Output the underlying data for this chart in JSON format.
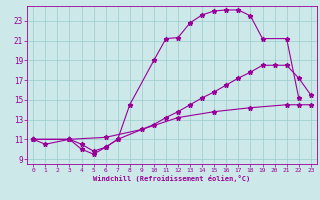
{
  "xlabel": "Windchill (Refroidissement éolien,°C)",
  "bg_color": "#cce8e8",
  "line_color": "#990099",
  "grid_color": "#99cccc",
  "xlim": [
    -0.5,
    23.5
  ],
  "ylim": [
    8.5,
    24.5
  ],
  "xticks": [
    0,
    1,
    2,
    3,
    4,
    5,
    6,
    7,
    8,
    9,
    10,
    11,
    12,
    13,
    14,
    15,
    16,
    17,
    18,
    19,
    20,
    21,
    22,
    23
  ],
  "yticks": [
    9,
    11,
    13,
    15,
    17,
    19,
    21,
    23
  ],
  "line1_x": [
    0,
    1,
    3,
    4,
    5,
    6,
    7,
    8,
    10,
    11,
    12,
    13,
    14,
    15,
    16,
    17,
    18,
    19,
    21,
    22
  ],
  "line1_y": [
    11,
    10.5,
    11,
    10,
    9.5,
    10.2,
    11,
    14.5,
    19,
    21.2,
    21.3,
    22.8,
    23.6,
    24.0,
    24.1,
    24.1,
    23.5,
    21.2,
    21.2,
    15.2
  ],
  "line2_x": [
    0,
    3,
    4,
    5,
    6,
    7,
    10,
    11,
    12,
    13,
    14,
    15,
    16,
    17,
    18,
    19,
    20,
    21,
    22,
    23
  ],
  "line2_y": [
    11,
    11,
    10.5,
    9.8,
    10.2,
    11,
    12.5,
    13.2,
    13.8,
    14.5,
    15.2,
    15.8,
    16.5,
    17.2,
    17.8,
    18.5,
    18.5,
    18.5,
    17.2,
    15.5
  ],
  "line3_x": [
    0,
    3,
    6,
    9,
    12,
    15,
    18,
    21,
    22,
    23
  ],
  "line3_y": [
    11,
    11,
    11.2,
    12,
    13.2,
    13.8,
    14.2,
    14.5,
    14.5,
    14.5
  ]
}
